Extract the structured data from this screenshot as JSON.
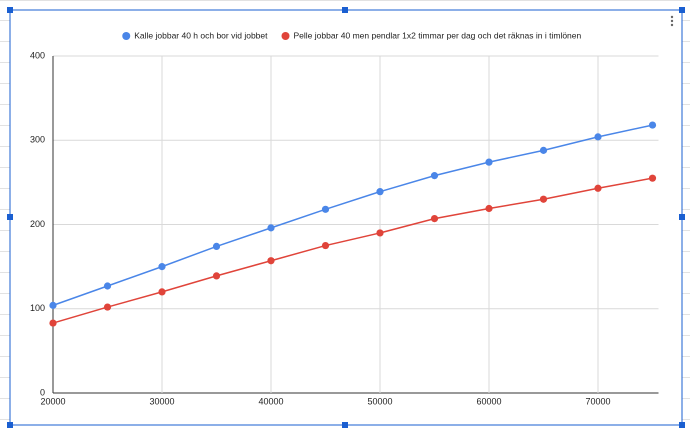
{
  "chart_data": {
    "type": "line",
    "x": [
      20000,
      25000,
      30000,
      35000,
      40000,
      45000,
      50000,
      55000,
      60000,
      65000,
      70000,
      75000
    ],
    "series": [
      {
        "name": "Kalle jobbar 40 h och bor vid jobbet",
        "color": "#4a86e8",
        "values": [
          104,
          127,
          150,
          174,
          196,
          218,
          239,
          258,
          274,
          288,
          304,
          318
        ]
      },
      {
        "name": "Pelle jobbar 40 men pendlar 1x2 timmar per dag och det räknas in i timlönen",
        "color": "#e0443a",
        "values": [
          83,
          102,
          120,
          139,
          157,
          175,
          190,
          207,
          219,
          230,
          243,
          255
        ]
      }
    ],
    "xlim": [
      20000,
      75000
    ],
    "xticks": [
      20000,
      30000,
      40000,
      50000,
      60000,
      70000
    ],
    "ylim": [
      0,
      400
    ],
    "yticks": [
      0,
      100,
      200,
      300,
      400
    ],
    "grid": true,
    "legend": "top"
  }
}
